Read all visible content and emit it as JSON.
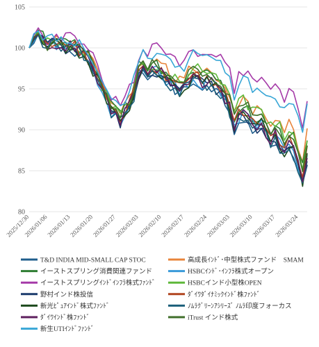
{
  "chart_data": {
    "type": "line",
    "title": "",
    "xlabel": "",
    "ylabel": "",
    "ylim": [
      80,
      105
    ],
    "yticks": [
      80,
      85,
      90,
      95,
      100,
      105
    ],
    "grid": "horizontal",
    "legend_position": "bottom",
    "x": [
      "2025/12/30",
      "2025/12/31",
      "2026/01/02",
      "2026/01/05",
      "2026/01/06",
      "2026/01/07",
      "2026/01/08",
      "2026/01/09",
      "2026/01/12",
      "2026/01/13",
      "2026/01/14",
      "2026/01/15",
      "2026/01/16",
      "2026/01/19",
      "2026/01/20",
      "2026/01/21",
      "2026/01/22",
      "2026/01/23",
      "2026/01/26",
      "2026/01/27",
      "2026/01/28",
      "2026/01/29",
      "2026/01/30",
      "2026/02/02",
      "2026/02/03",
      "2026/02/04",
      "2026/02/05",
      "2026/02/06",
      "2026/02/09",
      "2026/02/10",
      "2026/02/11",
      "2026/02/12",
      "2026/02/13",
      "2026/02/16",
      "2026/02/17",
      "2026/02/18",
      "2026/02/19",
      "2026/02/20",
      "2026/02/23",
      "2026/02/24",
      "2026/02/25",
      "2026/02/26",
      "2026/02/27",
      "2026/03/02",
      "2026/03/03",
      "2026/03/04",
      "2026/03/05",
      "2026/03/06",
      "2026/03/09",
      "2026/03/10",
      "2026/03/11",
      "2026/03/12",
      "2026/03/13",
      "2026/03/16",
      "2026/03/17",
      "2026/03/18",
      "2026/03/19",
      "2026/03/20",
      "2026/03/23",
      "2026/03/24",
      "2026/03/25",
      "2026/03/26"
    ],
    "xtick_labels": [
      "2025/12/30",
      "2026/01/06",
      "2026/01/13",
      "2026/01/20",
      "2026/01/27",
      "2026/02/03",
      "2026/02/10",
      "2026/02/17",
      "2026/02/24",
      "2026/03/03",
      "2026/03/10",
      "2026/03/17",
      "2026/03/24"
    ],
    "series": [
      {
        "name": "T&D INDIA MID-SMALL CAP STOC",
        "color": "#1f5e8c"
      },
      {
        "name": "高成長ｲﾝﾄﾞ･中型株式ファンド　SMAM",
        "color": "#e8843a"
      },
      {
        "name": "イーストスプリング消費関連ファンド",
        "color": "#2e7d32"
      },
      {
        "name": "HSBCｲﾝﾄﾞ･ｲﾝﾌﾗ株式オープン",
        "color": "#3a9ad9"
      },
      {
        "name": "イーストスプリングｲﾝﾄﾞｲﾝﾌﾗ株式ﾌｧﾝﾄﾞ",
        "color": "#a53aa8"
      },
      {
        "name": "HSBCインド小型株OPEN",
        "color": "#5fb83a"
      },
      {
        "name": "野村インド株投信",
        "color": "#1a3a6b"
      },
      {
        "name": "ﾀﾞｲﾜﾀﾞｲﾅﾐｯｸｲﾝﾄﾞ株ﾌｧﾝﾄﾞ",
        "color": "#b0441e"
      },
      {
        "name": "新光ﾋﾟｭｱｲﾝﾄﾞ株式ﾌｧﾝﾄﾞ",
        "color": "#1d4a1d"
      },
      {
        "name": "ﾉﾑﾗｸﾞﾘｰﾝｱｼﾘｰｽﾞ ﾉﾑﾗ印度フォーカス",
        "color": "#1b5f7a"
      },
      {
        "name": "ﾀﾞｲﾜｲﾝﾄﾞ株ﾌｧﾝﾄﾞ",
        "color": "#5e1f5e"
      },
      {
        "name": "iTrust インド株式",
        "color": "#3f6e2a"
      },
      {
        "name": "新生UTIｲﾝﾄﾞﾌｧﾝﾄﾞ",
        "color": "#38a6d6"
      }
    ]
  }
}
